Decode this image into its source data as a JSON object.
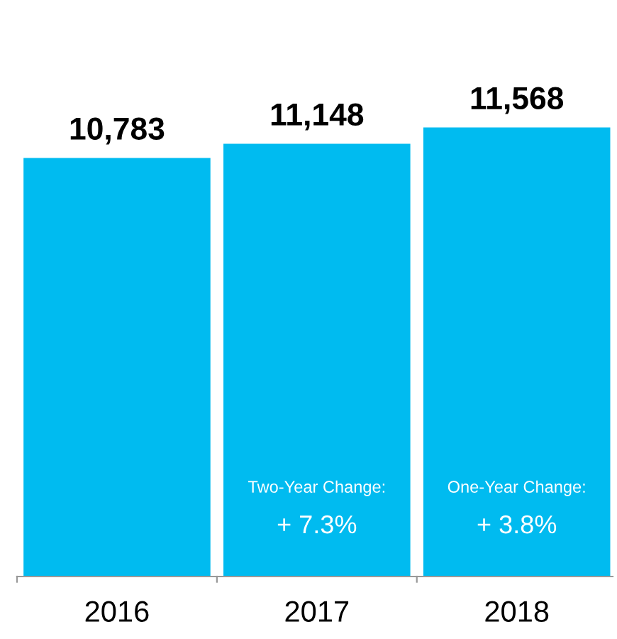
{
  "chart_data": {
    "type": "bar",
    "categories": [
      "2016",
      "2017",
      "2018"
    ],
    "values": [
      10783,
      11148,
      11568
    ],
    "value_labels": [
      "10,783",
      "11,148",
      "11,568"
    ],
    "color": "#00bbf0",
    "grid": false,
    "legend": false,
    "tick_labels": "x",
    "annotations": [
      "Two-Year Change:",
      "+ 7.3%",
      "One-Year Change:",
      "+ 3.8%"
    ]
  }
}
